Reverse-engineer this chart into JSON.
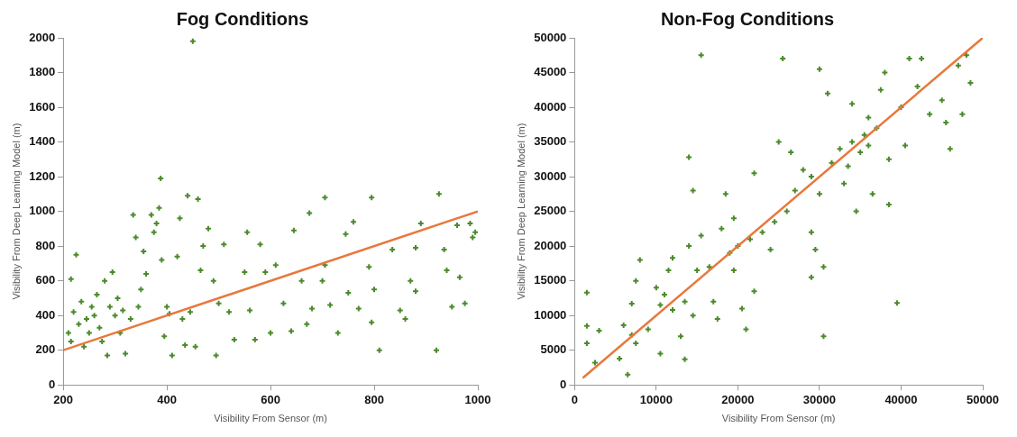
{
  "chart_data": [
    {
      "type": "scatter",
      "title": "Fog Conditions",
      "xlabel": "Visibility From Sensor (m)",
      "ylabel": "Visibility From Deep Learning Model (m)",
      "xlim": [
        200,
        1000
      ],
      "xticks": [
        200,
        400,
        600,
        800,
        1000
      ],
      "ylim": [
        0,
        2000
      ],
      "yticks": [
        0,
        200,
        400,
        600,
        800,
        1000,
        1200,
        1400,
        1600,
        1800,
        2000
      ],
      "grid": false,
      "legend": false,
      "marker": "cross",
      "series": [
        {
          "type": "scatter",
          "color": "#4b8a2c",
          "x": [
            210,
            215,
            220,
            225,
            215,
            230,
            235,
            240,
            245,
            250,
            255,
            260,
            265,
            270,
            275,
            280,
            285,
            290,
            295,
            300,
            305,
            310,
            315,
            320,
            330,
            335,
            340,
            345,
            350,
            355,
            360,
            370,
            375,
            380,
            385,
            388,
            390,
            395,
            400,
            405,
            410,
            420,
            425,
            430,
            435,
            440,
            445,
            450,
            455,
            460,
            465,
            470,
            480,
            490,
            495,
            500,
            510,
            520,
            530,
            550,
            555,
            560,
            570,
            580,
            590,
            600,
            610,
            625,
            640,
            645,
            660,
            670,
            675,
            680,
            700,
            705,
            705,
            715,
            730,
            745,
            750,
            760,
            770,
            790,
            795,
            795,
            800,
            810,
            835,
            850,
            860,
            870,
            880,
            880,
            890,
            920,
            925,
            935,
            940,
            950,
            960,
            965,
            975,
            985,
            990,
            995
          ],
          "values": [
            300,
            250,
            420,
            750,
            610,
            350,
            480,
            220,
            380,
            300,
            450,
            400,
            520,
            330,
            250,
            600,
            170,
            450,
            650,
            400,
            500,
            300,
            430,
            180,
            380,
            980,
            850,
            450,
            550,
            770,
            640,
            980,
            880,
            930,
            1020,
            1190,
            720,
            280,
            450,
            410,
            170,
            740,
            960,
            380,
            230,
            1090,
            420,
            1980,
            220,
            1070,
            660,
            800,
            900,
            600,
            170,
            470,
            810,
            420,
            260,
            650,
            880,
            430,
            260,
            810,
            650,
            300,
            690,
            470,
            310,
            890,
            600,
            350,
            990,
            440,
            600,
            690,
            1080,
            460,
            300,
            870,
            530,
            940,
            440,
            680,
            1080,
            360,
            550,
            200,
            780,
            430,
            380,
            600,
            540,
            790,
            930,
            200,
            1100,
            780,
            660,
            450,
            920,
            620,
            470,
            930,
            850,
            880
          ]
        },
        {
          "type": "line",
          "color": "#e8783c",
          "marker": "none",
          "x": [
            200,
            1000
          ],
          "values": [
            200,
            1000
          ]
        }
      ]
    },
    {
      "type": "scatter",
      "title": "Non-Fog Conditions",
      "xlabel": "Visibility From Sensor (m)",
      "ylabel": "Visibility From Deep Learning Model (m)",
      "xlim": [
        0,
        50000
      ],
      "xticks": [
        0,
        10000,
        20000,
        30000,
        40000,
        50000
      ],
      "ylim": [
        0,
        50000
      ],
      "yticks": [
        0,
        5000,
        10000,
        15000,
        20000,
        25000,
        30000,
        35000,
        40000,
        45000,
        50000
      ],
      "grid": false,
      "legend": false,
      "marker": "cross",
      "series": [
        {
          "type": "scatter",
          "color": "#4b8a2c",
          "x": [
            1500,
            1500,
            1500,
            3000,
            2500,
            5500,
            6000,
            6500,
            7000,
            7500,
            7000,
            7500,
            8000,
            9000,
            10000,
            10500,
            10500,
            11000,
            11500,
            12000,
            12000,
            13000,
            13500,
            13500,
            14000,
            14500,
            14000,
            14500,
            15000,
            15500,
            15500,
            16500,
            17000,
            17500,
            18000,
            18500,
            19000,
            19500,
            19500,
            20000,
            20500,
            21000,
            21500,
            22000,
            22000,
            23000,
            24000,
            24500,
            25000,
            25500,
            26000,
            26500,
            27000,
            28000,
            29000,
            29000,
            29000,
            29500,
            30000,
            30000,
            30500,
            30500,
            31000,
            31500,
            32500,
            33000,
            34000,
            34500,
            35000,
            35500,
            36000,
            36500,
            37000,
            37500,
            38000,
            38500,
            38500,
            39500,
            40000,
            40500,
            41000,
            42000,
            42500,
            43500,
            45000,
            45500,
            46000,
            47000,
            47500,
            48500,
            48000,
            33500,
            36000,
            34000
          ],
          "values": [
            13300,
            8500,
            6000,
            7800,
            3200,
            3800,
            8600,
            1500,
            7200,
            6000,
            11700,
            15000,
            18000,
            8000,
            14000,
            11500,
            4500,
            13000,
            16500,
            10800,
            18300,
            7000,
            12000,
            3700,
            20000,
            28000,
            32800,
            10000,
            16500,
            21500,
            47500,
            17000,
            12000,
            9500,
            22500,
            27500,
            19000,
            16500,
            24000,
            20000,
            11000,
            8000,
            21000,
            13500,
            30500,
            22000,
            19500,
            23500,
            35000,
            47000,
            25000,
            33500,
            28000,
            31000,
            30000,
            22000,
            15500,
            19500,
            45500,
            27500,
            17000,
            7000,
            42000,
            32000,
            34000,
            29000,
            35000,
            25000,
            33500,
            36000,
            34500,
            27500,
            37000,
            42500,
            45000,
            32500,
            26000,
            11800,
            40000,
            34500,
            47000,
            43000,
            47000,
            39000,
            41000,
            37800,
            34000,
            46000,
            39000,
            43500,
            47500,
            31500,
            38500,
            40500
          ]
        },
        {
          "type": "line",
          "color": "#e8783c",
          "marker": "none",
          "x": [
            1000,
            50000
          ],
          "values": [
            1000,
            50000
          ]
        }
      ]
    }
  ]
}
